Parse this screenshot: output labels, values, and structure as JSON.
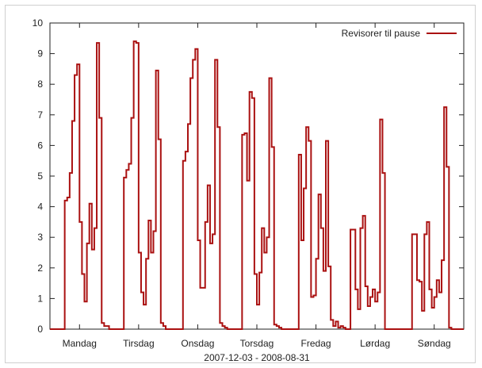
{
  "chart_data": {
    "type": "line",
    "step": true,
    "title": "",
    "xlabel": "2007-12-03  -  2008-08-31",
    "ylabel": "",
    "ylim": [
      0,
      10
    ],
    "yticks": [
      0,
      1,
      2,
      3,
      4,
      5,
      6,
      7,
      8,
      9,
      10
    ],
    "xlim": [
      0,
      168
    ],
    "days": [
      {
        "label": "Mandag",
        "hour": 12
      },
      {
        "label": "Tirsdag",
        "hour": 36
      },
      {
        "label": "Onsdag",
        "hour": 60
      },
      {
        "label": "Torsdag",
        "hour": 84
      },
      {
        "label": "Fredag",
        "hour": 108
      },
      {
        "label": "Lørdag",
        "hour": 132
      },
      {
        "label": "Søndag",
        "hour": 156
      }
    ],
    "grid": false,
    "legend_position": "top-right",
    "series": [
      {
        "name": "Revisorer til pause",
        "color": "#aa1111",
        "values": [
          0,
          0,
          0,
          0,
          0,
          0,
          4.2,
          4.3,
          5.1,
          6.8,
          8.3,
          8.65,
          3.5,
          1.8,
          0.9,
          2.8,
          4.1,
          2.6,
          3.3,
          9.35,
          6.9,
          0.2,
          0.1,
          0.1,
          0,
          0,
          0,
          0,
          0,
          0,
          4.95,
          5.2,
          5.4,
          6.9,
          9.4,
          9.35,
          2.5,
          1.2,
          0.8,
          2.3,
          3.55,
          2.5,
          3.2,
          8.45,
          6.2,
          0.2,
          0.1,
          0,
          0,
          0,
          0,
          0,
          0,
          0,
          5.5,
          5.8,
          6.7,
          8.2,
          8.8,
          9.15,
          2.9,
          1.35,
          1.35,
          3.5,
          4.7,
          2.8,
          3.1,
          8.8,
          6.6,
          0.2,
          0.1,
          0.05,
          0,
          0,
          0,
          0,
          0,
          0,
          6.35,
          6.4,
          4.85,
          7.75,
          7.55,
          1.8,
          0.8,
          1.85,
          3.3,
          2.5,
          3.0,
          8.2,
          5.95,
          0.15,
          0.1,
          0.05,
          0,
          0,
          0,
          0,
          0,
          0,
          0,
          5.7,
          2.9,
          4.6,
          6.6,
          6.15,
          1.05,
          1.1,
          2.3,
          4.4,
          3.3,
          1.9,
          6.15,
          2.05,
          0.3,
          0.1,
          0.25,
          0.05,
          0.1,
          0.05,
          0,
          0,
          3.25,
          3.25,
          1.3,
          0.65,
          3.3,
          3.7,
          1.4,
          0.75,
          1.05,
          1.3,
          0.9,
          1.2,
          6.85,
          5.1,
          0,
          0,
          0,
          0,
          0,
          0,
          0,
          0,
          0,
          0,
          0,
          3.1,
          3.1,
          1.6,
          1.55,
          0.6,
          3.1,
          3.5,
          1.3,
          0.7,
          1.05,
          1.6,
          1.2,
          2.25,
          7.25,
          5.3,
          0.05,
          0,
          0,
          0,
          0,
          0
        ]
      }
    ]
  }
}
